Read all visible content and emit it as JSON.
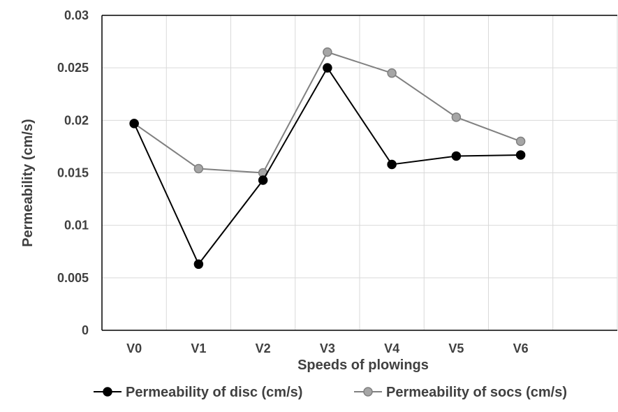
{
  "chart_data": {
    "type": "line",
    "title": "",
    "xlabel": "Speeds of plowings",
    "ylabel": "Permeability (cm/s)",
    "categories": [
      "V0",
      "V1",
      "V2",
      "V3",
      "V4",
      "V5",
      "V6"
    ],
    "y_ticks": [
      "0",
      "0.005",
      "0.01",
      "0.015",
      "0.02",
      "0.025",
      "0.03"
    ],
    "ylim": [
      0,
      0.03
    ],
    "grid": true,
    "legend_position": "bottom",
    "series": [
      {
        "name": "Permeability of disc (cm/s)",
        "color": "#000000",
        "values": [
          0.0197,
          0.0063,
          0.0143,
          0.025,
          0.0158,
          0.0166,
          0.0167
        ]
      },
      {
        "name": "Permeability of socs (cm/s)",
        "color": "#808080",
        "marker_color": "#A6A6A6",
        "values": [
          0.0197,
          0.0154,
          0.015,
          0.0265,
          0.0245,
          0.0203,
          0.018
        ]
      }
    ]
  }
}
